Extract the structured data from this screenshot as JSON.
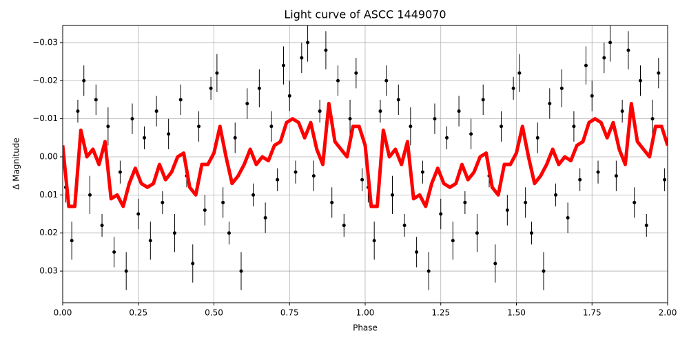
{
  "chart_data": {
    "type": "scatter",
    "title": "Light curve of ASCC 1449070",
    "x_label": "Phase",
    "y_label": "Δ Magnitude",
    "xlim": [
      0,
      2
    ],
    "ylim": [
      0.0383,
      -0.0345
    ],
    "grid": true,
    "xticks": [
      {
        "value": 0,
        "label": "0.00"
      },
      {
        "value": 0.25,
        "label": "0.25"
      },
      {
        "value": 0.5,
        "label": "0.50"
      },
      {
        "value": 0.75,
        "label": "0.75"
      },
      {
        "value": 1,
        "label": "1.00"
      },
      {
        "value": 1.25,
        "label": "1.25"
      },
      {
        "value": 1.5,
        "label": "1.50"
      },
      {
        "value": 1.75,
        "label": "1.75"
      },
      {
        "value": 2,
        "label": "2.00"
      }
    ],
    "yticks": [
      {
        "value": -0.03,
        "label": "−0.03"
      },
      {
        "value": -0.02,
        "label": "−0.02"
      },
      {
        "value": -0.01,
        "label": "−0.01"
      },
      {
        "value": 0,
        "label": "0.00"
      },
      {
        "value": 0.01,
        "label": "0.01"
      },
      {
        "value": 0.02,
        "label": "0.02"
      },
      {
        "value": 0.03,
        "label": "0.03"
      }
    ],
    "series": [
      {
        "type": "errorbar",
        "color": "#000000",
        "x": [
          0.01,
          0.03,
          0.05,
          0.07,
          0.09,
          0.11,
          0.13,
          0.15,
          0.17,
          0.19,
          0.21,
          0.23,
          0.25,
          0.27,
          0.29,
          0.31,
          0.33,
          0.35,
          0.37,
          0.39,
          0.41,
          0.43,
          0.45,
          0.47,
          0.49,
          0.51,
          0.53,
          0.55,
          0.57,
          0.59,
          0.61,
          0.63,
          0.65,
          0.67,
          0.69,
          0.71,
          0.73,
          0.75,
          0.77,
          0.79,
          0.81,
          0.83,
          0.85,
          0.87,
          0.89,
          0.91,
          0.93,
          0.95,
          0.97,
          0.99,
          1.01,
          1.03,
          1.05,
          1.07,
          1.09,
          1.11,
          1.13,
          1.15,
          1.17,
          1.19,
          1.21,
          1.23,
          1.25,
          1.27,
          1.29,
          1.31,
          1.33,
          1.35,
          1.37,
          1.39,
          1.41,
          1.43,
          1.45,
          1.47,
          1.49,
          1.51,
          1.53,
          1.55,
          1.57,
          1.59,
          1.61,
          1.63,
          1.65,
          1.67,
          1.69,
          1.71,
          1.73,
          1.75,
          1.77,
          1.79,
          1.81,
          1.83,
          1.85,
          1.87,
          1.89,
          1.91,
          1.93,
          1.95,
          1.97,
          1.99
        ],
        "values": [
          0.008,
          0.022,
          -0.012,
          -0.02,
          0.01,
          -0.015,
          0.018,
          -0.008,
          0.025,
          0.004,
          0.03,
          -0.01,
          0.015,
          -0.005,
          0.022,
          -0.012,
          0.012,
          -0.006,
          0.02,
          -0.015,
          0.005,
          0.028,
          -0.008,
          0.014,
          -0.018,
          -0.022,
          0.012,
          0.02,
          -0.005,
          0.03,
          -0.014,
          0.01,
          -0.018,
          0.016,
          -0.008,
          0.006,
          -0.024,
          -0.016,
          0.004,
          -0.026,
          -0.03,
          0.005,
          -0.012,
          -0.028,
          0.012,
          -0.02,
          0.018,
          -0.01,
          -0.022,
          0.006,
          0.008,
          0.022,
          -0.012,
          -0.02,
          0.01,
          -0.015,
          0.018,
          -0.008,
          0.025,
          0.004,
          0.03,
          -0.01,
          0.015,
          -0.005,
          0.022,
          -0.012,
          0.012,
          -0.006,
          0.02,
          -0.015,
          0.005,
          0.028,
          -0.008,
          0.014,
          -0.018,
          -0.022,
          0.012,
          0.02,
          -0.005,
          0.03,
          -0.014,
          0.01,
          -0.018,
          0.016,
          -0.008,
          0.006,
          -0.024,
          -0.016,
          0.004,
          -0.026,
          -0.03,
          0.005,
          -0.012,
          -0.028,
          0.012,
          -0.02,
          0.018,
          -0.01,
          -0.022,
          0.006
        ],
        "errors": [
          0.004,
          0.005,
          0.003,
          0.004,
          0.005,
          0.004,
          0.003,
          0.005,
          0.004,
          0.003,
          0.005,
          0.004,
          0.004,
          0.003,
          0.005,
          0.004,
          0.003,
          0.004,
          0.005,
          0.004,
          0.003,
          0.005,
          0.004,
          0.004,
          0.003,
          0.005,
          0.004,
          0.003,
          0.004,
          0.005,
          0.004,
          0.003,
          0.005,
          0.004,
          0.004,
          0.003,
          0.005,
          0.004,
          0.003,
          0.004,
          0.005,
          0.004,
          0.003,
          0.005,
          0.004,
          0.004,
          0.003,
          0.005,
          0.004,
          0.003,
          0.004,
          0.005,
          0.003,
          0.004,
          0.005,
          0.004,
          0.003,
          0.005,
          0.004,
          0.003,
          0.005,
          0.004,
          0.004,
          0.003,
          0.005,
          0.004,
          0.003,
          0.004,
          0.005,
          0.004,
          0.003,
          0.005,
          0.004,
          0.004,
          0.003,
          0.005,
          0.004,
          0.003,
          0.004,
          0.005,
          0.004,
          0.003,
          0.005,
          0.004,
          0.004,
          0.003,
          0.005,
          0.004,
          0.003,
          0.004,
          0.005,
          0.004,
          0.003,
          0.005,
          0.004,
          0.004,
          0.003,
          0.005,
          0.004,
          0.003
        ]
      },
      {
        "type": "line",
        "color": "#ff0000",
        "x": [
          0,
          0.02,
          0.04,
          0.06,
          0.08,
          0.1,
          0.12,
          0.14,
          0.16,
          0.18,
          0.2,
          0.22,
          0.24,
          0.26,
          0.28,
          0.3,
          0.32,
          0.34,
          0.36,
          0.38,
          0.4,
          0.42,
          0.44,
          0.46,
          0.48,
          0.5,
          0.52,
          0.54,
          0.56,
          0.58,
          0.6,
          0.62,
          0.64,
          0.66,
          0.68,
          0.7,
          0.72,
          0.74,
          0.76,
          0.78,
          0.8,
          0.82,
          0.84,
          0.86,
          0.88,
          0.9,
          0.92,
          0.94,
          0.96,
          0.98,
          1,
          1.02,
          1.04,
          1.06,
          1.08,
          1.1,
          1.12,
          1.14,
          1.16,
          1.18,
          1.2,
          1.22,
          1.24,
          1.26,
          1.28,
          1.3,
          1.32,
          1.34,
          1.36,
          1.38,
          1.4,
          1.42,
          1.44,
          1.46,
          1.48,
          1.5,
          1.52,
          1.54,
          1.56,
          1.58,
          1.6,
          1.62,
          1.64,
          1.66,
          1.68,
          1.7,
          1.72,
          1.74,
          1.76,
          1.78,
          1.8,
          1.82,
          1.84,
          1.86,
          1.88,
          1.9,
          1.92,
          1.94,
          1.96,
          1.98,
          2
        ],
        "values": [
          -0.003,
          0.013,
          0.013,
          -0.007,
          0,
          -0.002,
          0.002,
          -0.004,
          0.011,
          0.01,
          0.013,
          0.007,
          0.003,
          0.007,
          0.008,
          0.007,
          0.002,
          0.006,
          0.004,
          0,
          -0.001,
          0.008,
          0.01,
          0.002,
          0.002,
          -0.001,
          -0.008,
          0,
          0.007,
          0.005,
          0.002,
          -0.002,
          0.002,
          0,
          0.001,
          -0.003,
          -0.004,
          -0.009,
          -0.01,
          -0.009,
          -0.005,
          -0.009,
          -0.002,
          0.002,
          -0.014,
          -0.004,
          -0.002,
          0,
          -0.008,
          -0.008,
          -0.003,
          0.013,
          0.013,
          -0.007,
          0,
          -0.002,
          0.002,
          -0.004,
          0.011,
          0.01,
          0.013,
          0.007,
          0.003,
          0.007,
          0.008,
          0.007,
          0.002,
          0.006,
          0.004,
          0,
          -0.001,
          0.008,
          0.01,
          0.002,
          0.002,
          -0.001,
          -0.008,
          0,
          0.007,
          0.005,
          0.002,
          -0.002,
          0.002,
          0,
          0.001,
          -0.003,
          -0.004,
          -0.009,
          -0.01,
          -0.009,
          -0.005,
          -0.009,
          -0.002,
          0.002,
          -0.014,
          -0.004,
          -0.002,
          0,
          -0.008,
          -0.008,
          -0.003
        ]
      }
    ]
  }
}
